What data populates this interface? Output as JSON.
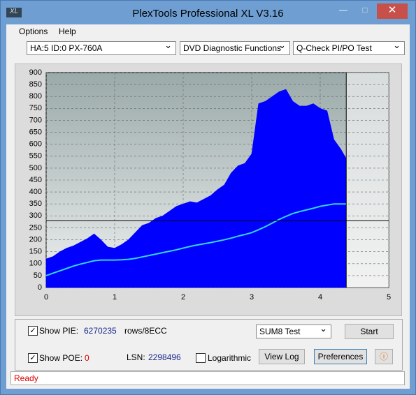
{
  "window": {
    "logo": "XL",
    "title": "PlexTools Professional XL V3.16"
  },
  "menu": [
    "Options",
    "Help"
  ],
  "selectors": [
    "HA:5 ID:0  PX-760A",
    "DVD Diagnostic Functions",
    "Q-Check PI/PO Test"
  ],
  "chart_data": {
    "type": "area",
    "x": [
      0,
      0.1,
      0.2,
      0.3,
      0.4,
      0.5,
      0.6,
      0.7,
      0.8,
      0.9,
      1.0,
      1.1,
      1.2,
      1.3,
      1.4,
      1.5,
      1.6,
      1.7,
      1.8,
      1.9,
      2.0,
      2.1,
      2.2,
      2.3,
      2.4,
      2.5,
      2.6,
      2.7,
      2.8,
      2.9,
      3.0,
      3.1,
      3.2,
      3.3,
      3.4,
      3.5,
      3.6,
      3.7,
      3.8,
      3.9,
      4.0,
      4.1,
      4.2,
      4.3,
      4.38
    ],
    "series": [
      {
        "color": "#0000ff",
        "fill": true,
        "values": [
          120,
          130,
          150,
          165,
          175,
          190,
          205,
          225,
          200,
          170,
          165,
          180,
          200,
          230,
          260,
          270,
          290,
          300,
          320,
          340,
          350,
          360,
          355,
          370,
          385,
          410,
          430,
          480,
          510,
          520,
          560,
          770,
          780,
          800,
          820,
          830,
          780,
          760,
          760,
          770,
          750,
          740,
          620,
          580,
          540
        ]
      },
      {
        "color": "#33d6ee",
        "fill": false,
        "values": [
          50,
          60,
          70,
          80,
          90,
          98,
          105,
          112,
          115,
          115,
          115,
          116,
          118,
          122,
          128,
          134,
          140,
          146,
          152,
          158,
          165,
          172,
          178,
          183,
          188,
          194,
          200,
          207,
          215,
          222,
          230,
          242,
          255,
          270,
          285,
          298,
          310,
          318,
          325,
          332,
          340,
          345,
          350,
          350,
          350
        ]
      }
    ],
    "xlim": [
      0,
      5
    ],
    "xticks": [
      0,
      1,
      2,
      3,
      4,
      5
    ],
    "ylim": [
      0,
      900
    ],
    "yticks": [
      0,
      50,
      100,
      150,
      200,
      250,
      300,
      350,
      400,
      450,
      500,
      550,
      600,
      650,
      700,
      750,
      800,
      850,
      900
    ],
    "grid": true,
    "hline": 280,
    "vline": 4.38
  },
  "controls": {
    "show_pie": {
      "label": "Show PIE:",
      "value": "6270235",
      "unit": "rows/8ECC"
    },
    "show_poe": {
      "label": "Show POE:",
      "value": "0"
    },
    "lsn": {
      "label": "LSN:",
      "value": "2298496"
    },
    "logarithmic": {
      "label": "Logarithmic"
    },
    "test": "SUM8 Test",
    "buttons": [
      "Start",
      "View Log",
      "Preferences"
    ]
  },
  "status": "Ready"
}
